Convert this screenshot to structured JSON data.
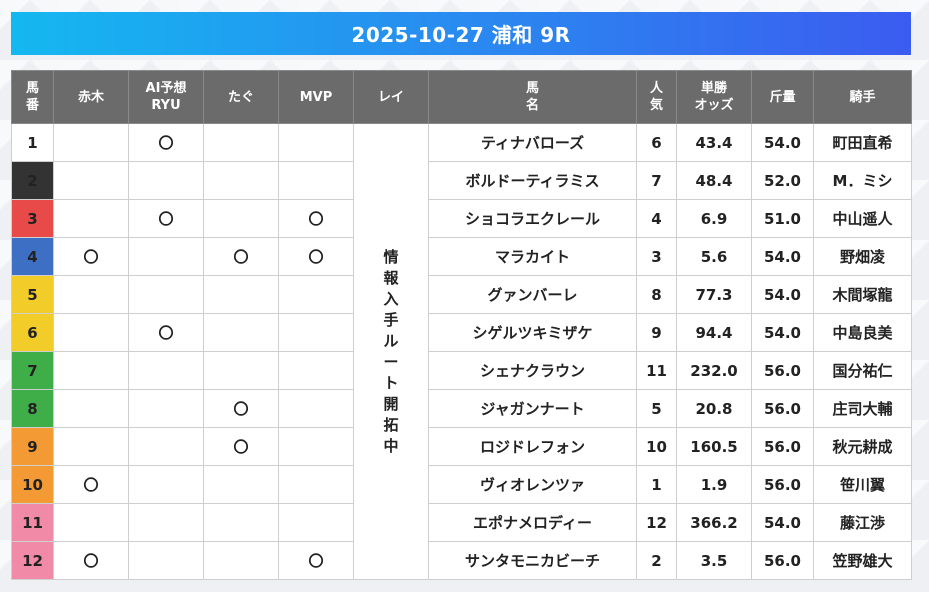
{
  "title": "2025-10-27 浦和 9R",
  "headers": {
    "umaban": "馬\n番",
    "akagi": "赤木",
    "ai": "AI予想\nRYU",
    "tagu": "たぐ",
    "mvp": "MVP",
    "rei": "レイ",
    "bamei": "馬\n名",
    "ninki": "人\n気",
    "odds": "単勝\nオッズ",
    "kinryo": "斤量",
    "kishu": "騎手"
  },
  "rei_note": "情報入手ルート開拓中",
  "gate_colors": [
    "#ffffff",
    "#333333",
    "#e84a4a",
    "#3d6fc4",
    "#f2cd2a",
    "#f2cd2a",
    "#3fae49",
    "#3fae49",
    "#f39a34",
    "#f39a34",
    "#f18aa6",
    "#f18aa6"
  ],
  "rows": [
    {
      "no": "1",
      "akagi": "",
      "ai": "〇",
      "tagu": "",
      "mvp": "",
      "name": "ティナバローズ",
      "ninki": "6",
      "odds": "43.4",
      "kinryo": "54.0",
      "jockey": "町田直希"
    },
    {
      "no": "2",
      "akagi": "",
      "ai": "",
      "tagu": "",
      "mvp": "",
      "name": "ボルドーティラミス",
      "ninki": "7",
      "odds": "48.4",
      "kinryo": "52.0",
      "jockey": "M．ミシ"
    },
    {
      "no": "3",
      "akagi": "",
      "ai": "〇",
      "tagu": "",
      "mvp": "〇",
      "name": "ショコラエクレール",
      "ninki": "4",
      "odds": "6.9",
      "kinryo": "51.0",
      "jockey": "中山遥人"
    },
    {
      "no": "4",
      "akagi": "〇",
      "ai": "",
      "tagu": "〇",
      "mvp": "〇",
      "name": "マラカイト",
      "ninki": "3",
      "odds": "5.6",
      "kinryo": "54.0",
      "jockey": "野畑凌"
    },
    {
      "no": "5",
      "akagi": "",
      "ai": "",
      "tagu": "",
      "mvp": "",
      "name": "グァンバーレ",
      "ninki": "8",
      "odds": "77.3",
      "kinryo": "54.0",
      "jockey": "木間塚龍"
    },
    {
      "no": "6",
      "akagi": "",
      "ai": "〇",
      "tagu": "",
      "mvp": "",
      "name": "シゲルツキミザケ",
      "ninki": "9",
      "odds": "94.4",
      "kinryo": "54.0",
      "jockey": "中島良美"
    },
    {
      "no": "7",
      "akagi": "",
      "ai": "",
      "tagu": "",
      "mvp": "",
      "name": "シェナクラウン",
      "ninki": "11",
      "odds": "232.0",
      "kinryo": "56.0",
      "jockey": "国分祐仁"
    },
    {
      "no": "8",
      "akagi": "",
      "ai": "",
      "tagu": "〇",
      "mvp": "",
      "name": "ジャガンナート",
      "ninki": "5",
      "odds": "20.8",
      "kinryo": "56.0",
      "jockey": "庄司大輔"
    },
    {
      "no": "9",
      "akagi": "",
      "ai": "",
      "tagu": "〇",
      "mvp": "",
      "name": "ロジドレフォン",
      "ninki": "10",
      "odds": "160.5",
      "kinryo": "56.0",
      "jockey": "秋元耕成"
    },
    {
      "no": "10",
      "akagi": "〇",
      "ai": "",
      "tagu": "",
      "mvp": "",
      "name": "ヴィオレンツァ",
      "ninki": "1",
      "odds": "1.9",
      "kinryo": "56.0",
      "jockey": "笹川翼"
    },
    {
      "no": "11",
      "akagi": "",
      "ai": "",
      "tagu": "",
      "mvp": "",
      "name": "エポナメロディー",
      "ninki": "12",
      "odds": "366.2",
      "kinryo": "54.0",
      "jockey": "藤江渉"
    },
    {
      "no": "12",
      "akagi": "〇",
      "ai": "",
      "tagu": "",
      "mvp": "〇",
      "name": "サンタモニカビーチ",
      "ninki": "2",
      "odds": "3.5",
      "kinryo": "56.0",
      "jockey": "笠野雄大"
    }
  ]
}
